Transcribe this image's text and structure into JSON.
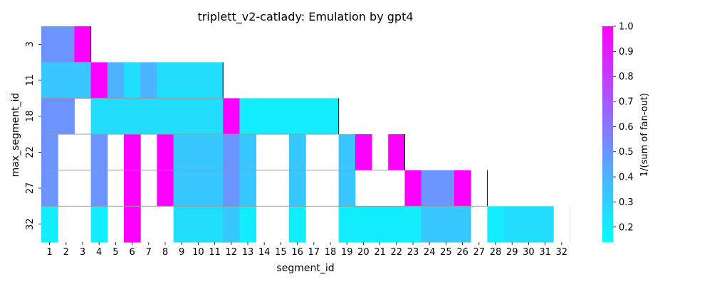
{
  "chart_data": {
    "type": "heatmap",
    "title": "triplett_v2-catlady: Emulation by gpt4",
    "xlabel": "segment_id",
    "ylabel": "max_segment_id",
    "x_categories": [
      "1",
      "2",
      "3",
      "4",
      "5",
      "6",
      "7",
      "8",
      "9",
      "10",
      "11",
      "12",
      "13",
      "14",
      "15",
      "16",
      "17",
      "18",
      "19",
      "20",
      "21",
      "22",
      "23",
      "24",
      "25",
      "26",
      "27",
      "28",
      "29",
      "30",
      "31",
      "32"
    ],
    "y_categories": [
      "3",
      "11",
      "18",
      "22",
      "27",
      "32"
    ],
    "colorbar": {
      "label": "1/(sum of fan-out)",
      "min": 0.14,
      "max": 1.0,
      "ticks": [
        "0.2",
        "0.3",
        "0.4",
        "0.5",
        "0.6",
        "0.7",
        "0.8",
        "0.9",
        "1.0"
      ],
      "low_color": "#00ffff",
      "high_color": "#ff00ff"
    },
    "rows": [
      [
        0.5,
        0.5,
        1.0,
        null,
        null,
        null,
        null,
        null,
        null,
        null,
        null,
        null,
        null,
        null,
        null,
        null,
        null,
        null,
        null,
        null,
        null,
        null,
        null,
        null,
        null,
        null,
        null,
        null,
        null,
        null,
        null,
        null
      ],
      [
        0.33,
        0.33,
        0.33,
        1.0,
        0.4,
        0.25,
        0.4,
        0.25,
        0.25,
        0.25,
        0.25,
        null,
        null,
        null,
        null,
        null,
        null,
        null,
        null,
        null,
        null,
        null,
        null,
        null,
        null,
        null,
        null,
        null,
        null,
        null,
        null,
        null
      ],
      [
        0.5,
        0.5,
        null,
        0.25,
        0.25,
        0.25,
        0.25,
        0.25,
        0.25,
        0.25,
        0.25,
        1.0,
        0.2,
        0.2,
        0.2,
        0.2,
        0.2,
        0.2,
        null,
        null,
        null,
        null,
        null,
        null,
        null,
        null,
        null,
        null,
        null,
        null,
        null,
        null
      ],
      [
        0.5,
        null,
        null,
        0.5,
        null,
        1.0,
        null,
        1.0,
        0.33,
        0.33,
        0.33,
        0.5,
        0.33,
        null,
        null,
        0.33,
        null,
        null,
        0.33,
        1.0,
        null,
        1.0,
        null,
        null,
        null,
        null,
        null,
        null,
        null,
        null,
        null,
        null
      ],
      [
        0.5,
        null,
        null,
        0.5,
        null,
        1.0,
        null,
        1.0,
        0.33,
        0.33,
        0.33,
        0.5,
        0.33,
        null,
        null,
        0.33,
        null,
        null,
        0.33,
        null,
        null,
        null,
        1.0,
        0.5,
        0.5,
        1.0,
        null,
        null,
        null,
        null,
        null,
        null
      ],
      [
        0.2,
        null,
        null,
        0.2,
        null,
        1.0,
        null,
        null,
        0.25,
        0.25,
        0.25,
        0.33,
        0.2,
        null,
        null,
        0.2,
        null,
        null,
        0.2,
        0.2,
        0.2,
        0.2,
        0.2,
        0.33,
        0.33,
        0.33,
        null,
        0.2,
        0.25,
        0.25,
        0.25,
        null
      ]
    ],
    "row_boundaries_after_column": [
      "3",
      "11",
      "18",
      "22",
      "27",
      "32"
    ]
  }
}
